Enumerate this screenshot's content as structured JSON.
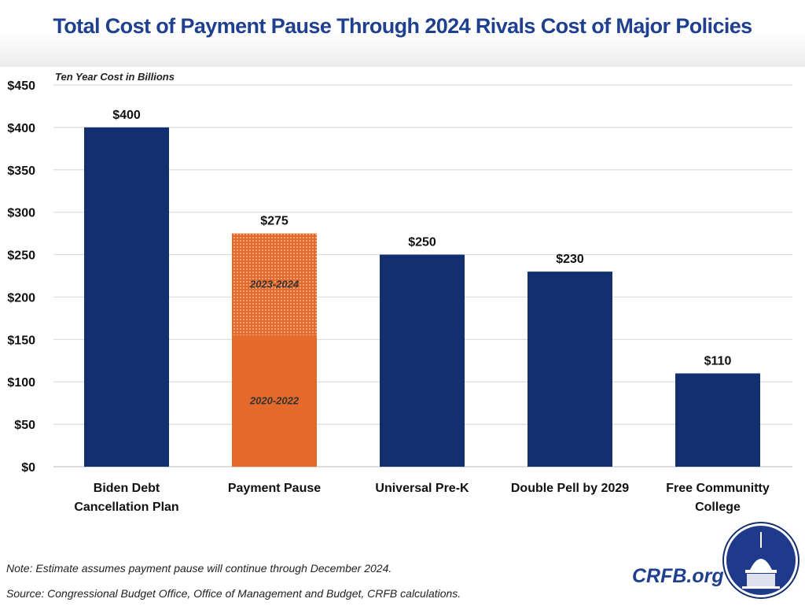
{
  "header": {
    "title": "Total Cost of Payment Pause Through 2024 Rivals Cost of Major Policies"
  },
  "footer": {
    "note": "Note: Estimate assumes payment pause will continue through December 2024.",
    "source": "Source: Congressional Budget Office, Office of Management and Budget, CRFB calculations.",
    "brand": "CRFB.org"
  },
  "colors": {
    "navy": "#12306f",
    "orange": "#e46a2b",
    "title": "#1f3f8f"
  },
  "chart_data": {
    "type": "bar",
    "title": "Total Cost of Payment Pause Through 2024 Rivals Cost of Major Policies",
    "ylabel": "Ten Year Cost in Billions",
    "xlabel": "",
    "ylim": [
      0,
      450
    ],
    "yticks": [
      0,
      50,
      100,
      150,
      200,
      250,
      300,
      350,
      400,
      450
    ],
    "ytick_labels": [
      "$0",
      "$50",
      "$100",
      "$150",
      "$200",
      "$250",
      "$300",
      "$350",
      "$400",
      "$450"
    ],
    "grid": true,
    "categories": [
      [
        "Biden Debt",
        "Cancellation Plan"
      ],
      [
        "Payment Pause"
      ],
      [
        "Universal Pre-K"
      ],
      [
        "Double Pell by 2029"
      ],
      [
        "Free Communitty",
        "College"
      ]
    ],
    "values": [
      400,
      275,
      250,
      230,
      110
    ],
    "value_labels": [
      "$400",
      "$275",
      "$250",
      "$230",
      "$110"
    ],
    "stacked_segments": {
      "category_index": 1,
      "segments": [
        {
          "name": "2020-2022",
          "value": 155,
          "style": "solid"
        },
        {
          "name": "2023-2024",
          "value": 120,
          "style": "dotted"
        }
      ]
    }
  }
}
